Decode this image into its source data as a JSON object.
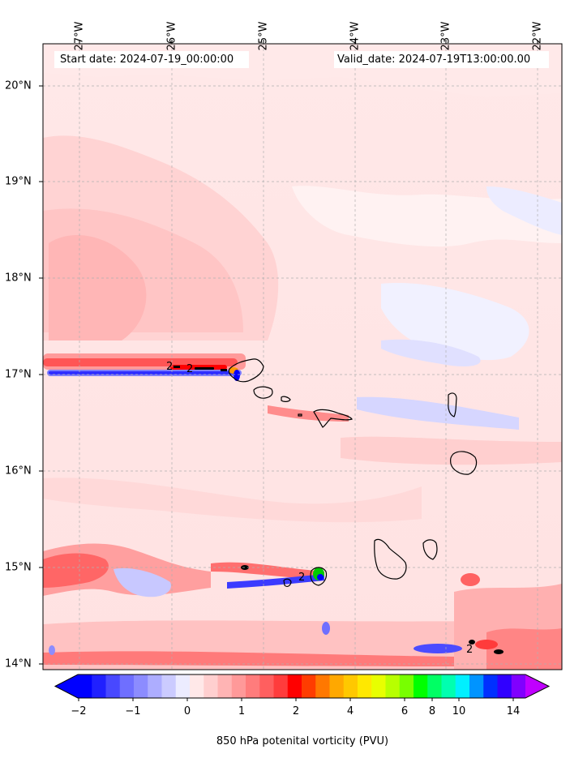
{
  "header": {
    "start_date": "Start date: 2024-07-19_00:00:00",
    "valid_date": "Valid_date: 2024-07-19T13:00:00.00"
  },
  "map": {
    "lon_labels": [
      "27°W",
      "26°W",
      "25°W",
      "24°W",
      "23°W",
      "22°W"
    ],
    "lat_labels": [
      "20°N",
      "19°N",
      "18°N",
      "17°N",
      "16°N",
      "15°N",
      "14°N"
    ],
    "lon_range": [
      -27.4,
      -21.75
    ],
    "lat_range": [
      13.95,
      20.45
    ],
    "gridlines": "dashed",
    "contour_label": "2",
    "field": "850 hPa potential vorticity",
    "features": [
      {
        "name": "Santo Antão",
        "type": "island"
      },
      {
        "name": "São Vicente",
        "type": "island"
      },
      {
        "name": "São Nicolau",
        "type": "island"
      },
      {
        "name": "Sal",
        "type": "island"
      },
      {
        "name": "Boa Vista",
        "type": "island"
      },
      {
        "name": "Maio",
        "type": "island"
      },
      {
        "name": "Santiago",
        "type": "island"
      },
      {
        "name": "Fogo",
        "type": "island"
      },
      {
        "name": "Brava",
        "type": "island"
      }
    ]
  },
  "colorbar": {
    "title": "850 hPa potenital vorticity (PVU)",
    "tick_labels": [
      "−2",
      "−1",
      "0",
      "1",
      "2",
      "4",
      "6",
      "8",
      "10",
      "14"
    ],
    "tick_values": [
      -2,
      -1,
      0,
      1,
      2,
      4,
      6,
      8,
      10,
      14
    ],
    "extend": "both",
    "colors": [
      "#0000ff",
      "#2020ff",
      "#4848ff",
      "#6f6fff",
      "#8c8cff",
      "#adadff",
      "#cbcbff",
      "#ececff",
      "#ffe8e8",
      "#ffcfcf",
      "#ffb4b4",
      "#ff9999",
      "#ff7c7c",
      "#ff5f5f",
      "#ff3c3c",
      "#ff0000",
      "#ff3c00",
      "#ff7800",
      "#ffa800",
      "#ffc800",
      "#ffe800",
      "#e8ff00",
      "#b8ff00",
      "#78ff00",
      "#00ff00",
      "#00ff64",
      "#00ffb0",
      "#00f0ff",
      "#0094ff",
      "#0030ff",
      "#3000ff",
      "#8000ff"
    ],
    "under_color": "#0000ff",
    "over_color": "#c000ff"
  }
}
